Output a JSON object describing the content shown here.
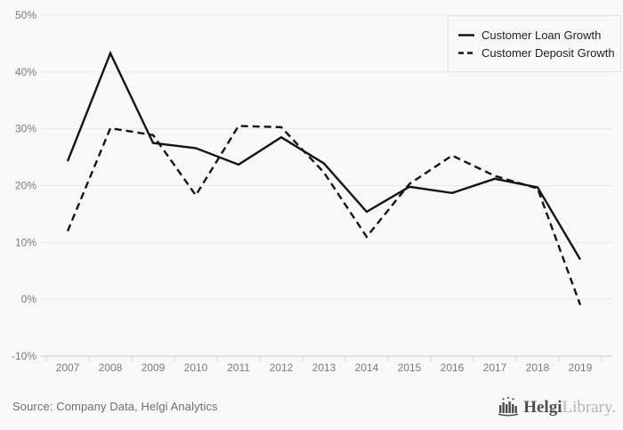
{
  "chart_data": {
    "type": "line",
    "categories": [
      "2007",
      "2008",
      "2009",
      "2010",
      "2011",
      "2012",
      "2013",
      "2014",
      "2015",
      "2016",
      "2017",
      "2018",
      "2019"
    ],
    "series": [
      {
        "name": "Customer Loan Growth",
        "style": "solid",
        "values": [
          24.3,
          43.3,
          27.5,
          26.6,
          23.7,
          28.5,
          23.9,
          15.4,
          19.8,
          18.7,
          21.2,
          19.7,
          7.0
        ]
      },
      {
        "name": "Customer Deposit Growth",
        "style": "dashed",
        "values": [
          12.0,
          30.1,
          28.9,
          18.3,
          30.5,
          30.3,
          22.3,
          11.0,
          20.3,
          25.3,
          21.7,
          19.5,
          -1.0
        ]
      }
    ],
    "title": "",
    "xlabel": "",
    "ylabel": "",
    "ylim": [
      -10,
      50
    ],
    "y_tick_step": 10,
    "y_tick_labels": [
      "50%",
      "40%",
      "30%",
      "20%",
      "10%",
      "0%",
      "-10%"
    ],
    "grid": true,
    "legend_position": "top-right"
  },
  "legend": {
    "items": [
      {
        "label": "Customer Loan Growth",
        "style": "solid"
      },
      {
        "label": "Customer Deposit Growth",
        "style": "dashed"
      }
    ]
  },
  "footer": {
    "source": "Source: Company Data, Helgi Analytics",
    "logo_icon": "helgi-bars-icon",
    "logo_text_primary": "Helgi",
    "logo_text_secondary": "Library."
  },
  "colors": {
    "background": "#f8f8f8",
    "gridline": "#e8e8e8",
    "axis": "#c6cdda",
    "tick_label": "#7b7b7b",
    "line": "#141414",
    "legend_border": "#e3e3e3",
    "legend_text": "#1f1f1f",
    "source_text": "#6e6e6e",
    "logo_primary": "#4e4e4e",
    "logo_secondary": "#b5b5b5"
  }
}
